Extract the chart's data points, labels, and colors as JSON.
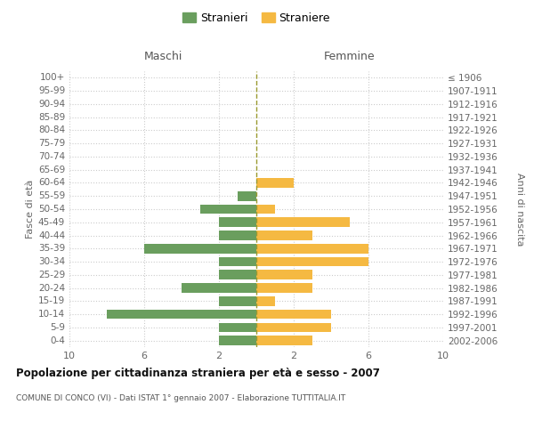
{
  "age_groups": [
    "100+",
    "95-99",
    "90-94",
    "85-89",
    "80-84",
    "75-79",
    "70-74",
    "65-69",
    "60-64",
    "55-59",
    "50-54",
    "45-49",
    "40-44",
    "35-39",
    "30-34",
    "25-29",
    "20-24",
    "15-19",
    "10-14",
    "5-9",
    "0-4"
  ],
  "birth_years": [
    "≤ 1906",
    "1907-1911",
    "1912-1916",
    "1917-1921",
    "1922-1926",
    "1927-1931",
    "1932-1936",
    "1937-1941",
    "1942-1946",
    "1947-1951",
    "1952-1956",
    "1957-1961",
    "1962-1966",
    "1967-1971",
    "1972-1976",
    "1977-1981",
    "1982-1986",
    "1987-1991",
    "1992-1996",
    "1997-2001",
    "2002-2006"
  ],
  "males": [
    0,
    0,
    0,
    0,
    0,
    0,
    0,
    0,
    0,
    1,
    3,
    2,
    2,
    6,
    2,
    2,
    4,
    2,
    8,
    2,
    2
  ],
  "females": [
    0,
    0,
    0,
    0,
    0,
    0,
    0,
    0,
    2,
    0,
    1,
    5,
    3,
    6,
    6,
    3,
    3,
    1,
    4,
    4,
    3
  ],
  "male_color": "#6a9e5e",
  "female_color": "#f5b942",
  "center_line_color": "#9a9a30",
  "grid_color": "#cccccc",
  "title": "Popolazione per cittadinanza straniera per età e sesso - 2007",
  "subtitle": "COMUNE DI CONCO (VI) - Dati ISTAT 1° gennaio 2007 - Elaborazione TUTTITALIA.IT",
  "header_left": "Maschi",
  "header_right": "Femmine",
  "ylabel_left": "Fasce di età",
  "ylabel_right": "Anni di nascita",
  "legend_male": "Stranieri",
  "legend_female": "Straniere",
  "xlim": 10,
  "background_color": "#ffffff"
}
